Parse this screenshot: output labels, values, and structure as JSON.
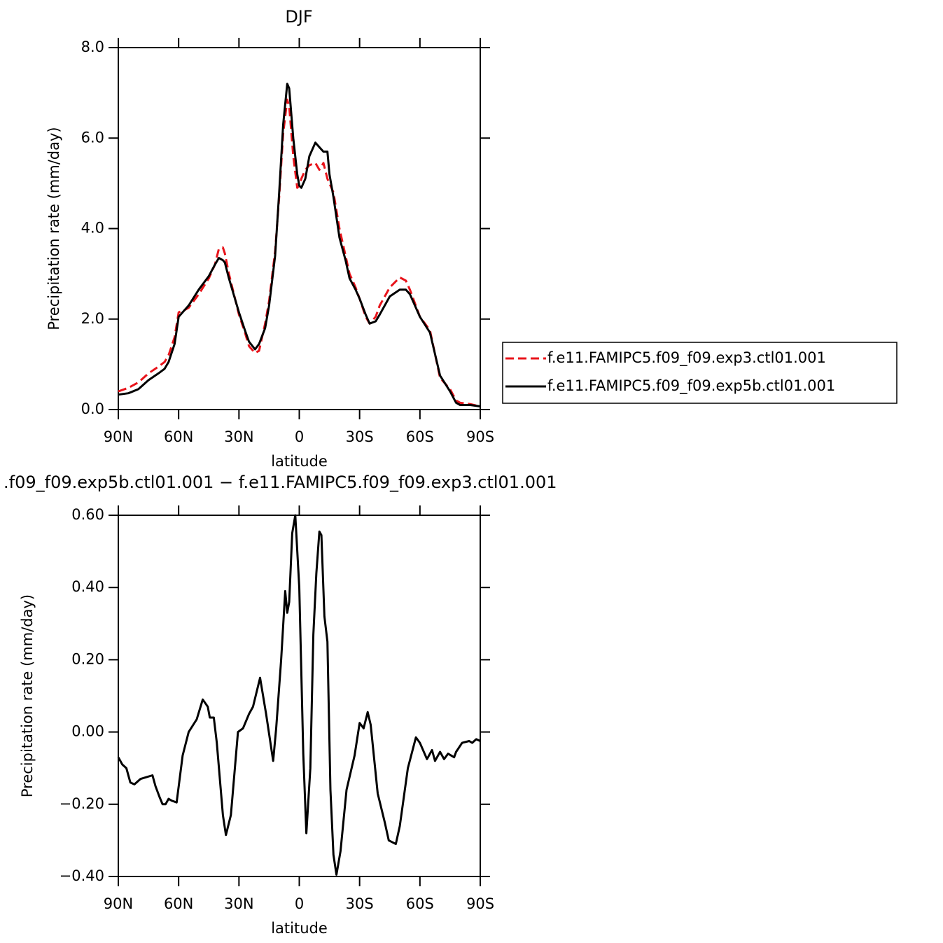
{
  "chart_data": [
    {
      "type": "line",
      "title": "DJF",
      "xlabel": "latitude",
      "ylabel": "Precipitation rate (mm/day)",
      "x": [
        90,
        85,
        80,
        75,
        70,
        67,
        65,
        62,
        60,
        57,
        55,
        50,
        45,
        42,
        40,
        38,
        37,
        35,
        30,
        27,
        25,
        22,
        20,
        17,
        15,
        12,
        10,
        8,
        6,
        5,
        3,
        1,
        0,
        -1,
        -3,
        -5,
        -8,
        -10,
        -12,
        -14,
        -15,
        -17,
        -20,
        -23,
        -25,
        -28,
        -30,
        -33,
        -35,
        -38,
        -40,
        -45,
        -50,
        -53,
        -55,
        -60,
        -65,
        -70,
        -75,
        -78,
        -80,
        -85,
        -90
      ],
      "series": [
        {
          "name": "f.e11.FAMIPC5.f09_f09.exp3.ctl01.001",
          "color": "#e8141b",
          "dashed": true,
          "values": [
            0.4,
            0.48,
            0.6,
            0.8,
            0.95,
            1.05,
            1.2,
            1.6,
            2.15,
            2.2,
            2.25,
            2.55,
            2.9,
            3.2,
            3.55,
            3.58,
            3.45,
            3.0,
            2.1,
            1.7,
            1.4,
            1.25,
            1.3,
            1.9,
            2.4,
            3.5,
            4.7,
            6.1,
            6.85,
            6.7,
            5.6,
            4.9,
            4.95,
            5.1,
            5.3,
            5.4,
            5.45,
            5.3,
            5.45,
            5.1,
            5.0,
            4.8,
            4.0,
            3.4,
            3.0,
            2.7,
            2.45,
            2.05,
            1.9,
            2.05,
            2.3,
            2.7,
            2.92,
            2.85,
            2.65,
            2.05,
            1.75,
            0.7,
            0.45,
            0.2,
            0.15,
            0.12,
            0.07
          ]
        },
        {
          "name": "f.e11.FAMIPC5.f09_f09.exp5b.ctl01.001",
          "color": "#000000",
          "dashed": false,
          "values": [
            0.33,
            0.36,
            0.45,
            0.65,
            0.8,
            0.9,
            1.05,
            1.45,
            2.05,
            2.2,
            2.3,
            2.65,
            2.95,
            3.2,
            3.35,
            3.3,
            3.25,
            2.9,
            2.15,
            1.75,
            1.5,
            1.33,
            1.45,
            1.8,
            2.3,
            3.4,
            4.8,
            6.3,
            7.2,
            7.1,
            6.0,
            5.2,
            4.95,
            4.9,
            5.1,
            5.6,
            5.9,
            5.8,
            5.7,
            5.7,
            5.2,
            4.7,
            3.8,
            3.3,
            2.9,
            2.65,
            2.45,
            2.1,
            1.9,
            1.95,
            2.1,
            2.5,
            2.65,
            2.65,
            2.55,
            2.05,
            1.7,
            0.75,
            0.4,
            0.15,
            0.1,
            0.1,
            0.07
          ]
        }
      ],
      "xlim": [
        90,
        -90
      ],
      "xticks": [
        {
          "value": 90,
          "label": "90N"
        },
        {
          "value": 60,
          "label": "60N"
        },
        {
          "value": 30,
          "label": "30N"
        },
        0,
        {
          "value": -30,
          "label": "30S"
        },
        {
          "value": -60,
          "label": "60S"
        },
        {
          "value": -90,
          "label": "90S"
        }
      ],
      "ylim": [
        0,
        8
      ],
      "yticks": [
        {
          "value": 0,
          "label": "0.0"
        },
        {
          "value": 2,
          "label": "2.0"
        },
        {
          "value": 4,
          "label": "4.0"
        },
        {
          "value": 6,
          "label": "6.0"
        },
        {
          "value": 8,
          "label": "8.0"
        }
      ],
      "legend_position": "right"
    },
    {
      "type": "line",
      "title": ".f09_f09.exp5b.ctl01.001  −  f.e11.FAMIPC5.f09_f09.exp3.ctl01.001",
      "xlabel": "latitude",
      "ylabel": "Precipitation rate (mm/day)",
      "x": [
        90,
        88,
        86,
        84,
        82,
        79,
        76,
        73,
        71.5,
        69.5,
        68,
        66.5,
        65,
        63.5,
        61,
        58,
        55,
        51,
        48,
        45.5,
        44.5,
        42.5,
        41,
        38,
        36.5,
        34,
        30.5,
        28,
        25,
        23,
        19.5,
        16.5,
        13,
        11.5,
        9,
        7,
        6,
        5,
        3.5,
        2,
        0,
        -2,
        -3.5,
        -5.5,
        -7,
        -8.5,
        -10,
        -11,
        -12.5,
        -14,
        -15.5,
        -17,
        -18.5,
        -20.5,
        -23.5,
        -27.5,
        -30,
        -32,
        -34,
        -35.5,
        -39,
        -42.5,
        -44.5,
        -48,
        -50,
        -54,
        -58,
        -60,
        -63.5,
        -66,
        -67.5,
        -70,
        -72,
        -74,
        -77,
        -78,
        -81,
        -84.5,
        -86,
        -88,
        -90
      ],
      "color": "#000000",
      "values": [
        -0.07,
        -0.09,
        -0.1,
        -0.14,
        -0.145,
        -0.13,
        -0.125,
        -0.12,
        -0.15,
        -0.18,
        -0.2,
        -0.2,
        -0.185,
        -0.19,
        -0.195,
        -0.065,
        0.0,
        0.035,
        0.09,
        0.07,
        0.04,
        0.04,
        -0.03,
        -0.23,
        -0.285,
        -0.23,
        0.0,
        0.01,
        0.05,
        0.07,
        0.15,
        0.05,
        -0.08,
        0.01,
        0.2,
        0.39,
        0.33,
        0.36,
        0.55,
        0.6,
        0.4,
        -0.06,
        -0.28,
        -0.1,
        0.27,
        0.44,
        0.555,
        0.545,
        0.32,
        0.25,
        -0.16,
        -0.34,
        -0.395,
        -0.33,
        -0.16,
        -0.065,
        0.025,
        0.01,
        0.055,
        0.02,
        -0.17,
        -0.25,
        -0.3,
        -0.31,
        -0.26,
        -0.1,
        -0.015,
        -0.03,
        -0.075,
        -0.05,
        -0.08,
        -0.055,
        -0.075,
        -0.06,
        -0.07,
        -0.055,
        -0.03,
        -0.025,
        -0.03,
        -0.02,
        -0.025
      ],
      "xlim": [
        90,
        -90
      ],
      "xticks": [
        {
          "value": 90,
          "label": "90N"
        },
        {
          "value": 60,
          "label": "60N"
        },
        {
          "value": 30,
          "label": "30N"
        },
        0,
        {
          "value": -30,
          "label": "30S"
        },
        {
          "value": -60,
          "label": "60S"
        },
        {
          "value": -90,
          "label": "90S"
        }
      ],
      "ylim": [
        -0.4,
        0.6
      ],
      "yticks": [
        {
          "value": -0.4,
          "label": "−0.40"
        },
        {
          "value": -0.2,
          "label": "−0.20"
        },
        {
          "value": 0,
          "label": "0.00"
        },
        {
          "value": 0.2,
          "label": "0.20"
        },
        {
          "value": 0.4,
          "label": "0.40"
        },
        {
          "value": 0.6,
          "label": "0.60"
        }
      ]
    }
  ]
}
